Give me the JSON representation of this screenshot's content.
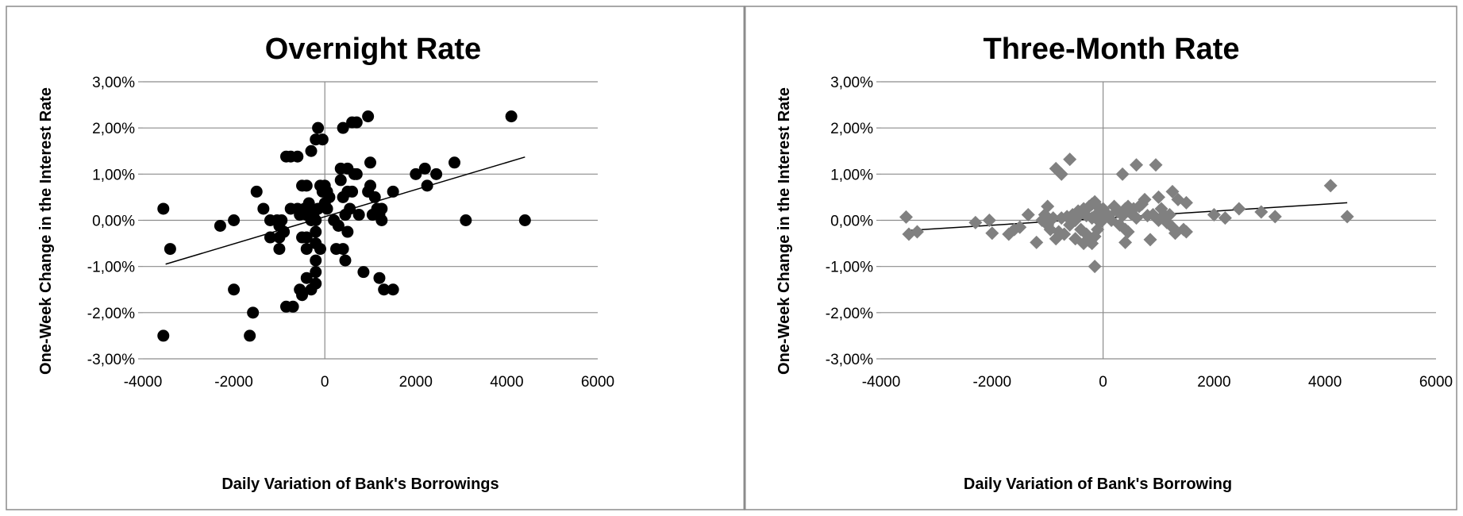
{
  "chart_data": [
    {
      "type": "scatter",
      "title": "Overnight Rate",
      "xlabel": "Daily Variation of Bank's Borrowings",
      "ylabel": "One-Week Change in the Interest Rate",
      "xlim": [
        -4000,
        6000
      ],
      "ylim": [
        -3.0,
        3.0
      ],
      "x_ticks": [
        -4000,
        -2000,
        0,
        2000,
        4000,
        6000
      ],
      "x_tick_labels": [
        "-4000",
        "-2000",
        "0",
        "2000",
        "4000",
        "6000"
      ],
      "y_ticks": [
        3,
        2,
        1,
        0,
        -1,
        -2,
        -3
      ],
      "y_tick_labels": [
        "3,00%",
        "2,00%",
        "1,00%",
        "0,00%",
        "-1,00%",
        "-2,00%",
        "-3,00%"
      ],
      "grid": "horizontal",
      "marker": "circle",
      "marker_color": "#000000",
      "trendline": {
        "x": [
          -3500,
          4400
        ],
        "y": [
          -0.95,
          1.37
        ]
      },
      "series": [
        {
          "points": [
            [
              -3550,
              0.25
            ],
            [
              -3400,
              -0.62
            ],
            [
              -3550,
              -2.5
            ],
            [
              -2300,
              -0.12
            ],
            [
              -2000,
              0.0
            ],
            [
              -2000,
              -1.5
            ],
            [
              -1650,
              -2.5
            ],
            [
              -1580,
              -2.0
            ],
            [
              -1500,
              0.62
            ],
            [
              -1350,
              0.25
            ],
            [
              -1200,
              0.0
            ],
            [
              -1200,
              -0.37
            ],
            [
              -1050,
              0.0
            ],
            [
              -1000,
              -0.12
            ],
            [
              -1000,
              -0.37
            ],
            [
              -1000,
              -0.62
            ],
            [
              -950,
              0.0
            ],
            [
              -900,
              -0.25
            ],
            [
              -850,
              1.38
            ],
            [
              -850,
              -1.87
            ],
            [
              -750,
              1.38
            ],
            [
              -750,
              0.25
            ],
            [
              -700,
              -1.87
            ],
            [
              -600,
              1.38
            ],
            [
              -600,
              0.25
            ],
            [
              -550,
              0.12
            ],
            [
              -550,
              -1.5
            ],
            [
              -500,
              0.75
            ],
            [
              -500,
              -0.37
            ],
            [
              -500,
              -1.62
            ],
            [
              -450,
              0.25
            ],
            [
              -400,
              0.75
            ],
            [
              -400,
              0.12
            ],
            [
              -400,
              -0.37
            ],
            [
              -400,
              -0.62
            ],
            [
              -400,
              -1.25
            ],
            [
              -350,
              0.37
            ],
            [
              -300,
              1.5
            ],
            [
              -300,
              0.25
            ],
            [
              -300,
              0.0
            ],
            [
              -300,
              -1.5
            ],
            [
              -250,
              0.12
            ],
            [
              -200,
              1.75
            ],
            [
              -200,
              0.0
            ],
            [
              -200,
              -0.25
            ],
            [
              -200,
              -0.5
            ],
            [
              -200,
              -0.87
            ],
            [
              -200,
              -1.12
            ],
            [
              -200,
              -1.37
            ],
            [
              -150,
              2.0
            ],
            [
              -150,
              0.25
            ],
            [
              -100,
              0.75
            ],
            [
              -100,
              -0.62
            ],
            [
              -50,
              1.75
            ],
            [
              -50,
              0.62
            ],
            [
              0,
              0.75
            ],
            [
              0,
              0.37
            ],
            [
              50,
              0.62
            ],
            [
              50,
              0.25
            ],
            [
              100,
              0.5
            ],
            [
              200,
              0.0
            ],
            [
              250,
              -0.62
            ],
            [
              300,
              -0.12
            ],
            [
              350,
              1.12
            ],
            [
              350,
              0.87
            ],
            [
              400,
              2.0
            ],
            [
              400,
              0.5
            ],
            [
              400,
              -0.62
            ],
            [
              450,
              0.12
            ],
            [
              450,
              -0.87
            ],
            [
              500,
              1.12
            ],
            [
              500,
              0.62
            ],
            [
              500,
              -0.25
            ],
            [
              550,
              0.25
            ],
            [
              600,
              2.12
            ],
            [
              600,
              0.62
            ],
            [
              650,
              1.0
            ],
            [
              700,
              1.0
            ],
            [
              700,
              2.12
            ],
            [
              750,
              0.12
            ],
            [
              850,
              -1.12
            ],
            [
              950,
              2.25
            ],
            [
              950,
              0.62
            ],
            [
              1000,
              1.25
            ],
            [
              1000,
              0.75
            ],
            [
              1050,
              0.12
            ],
            [
              1100,
              0.5
            ],
            [
              1150,
              0.25
            ],
            [
              1200,
              0.12
            ],
            [
              1200,
              -1.25
            ],
            [
              1250,
              0.0
            ],
            [
              1250,
              0.25
            ],
            [
              1300,
              -1.5
            ],
            [
              1500,
              0.62
            ],
            [
              1500,
              -1.5
            ],
            [
              2000,
              1.0
            ],
            [
              2200,
              1.12
            ],
            [
              2250,
              0.75
            ],
            [
              2450,
              1.0
            ],
            [
              2850,
              1.25
            ],
            [
              3100,
              0.0
            ],
            [
              4100,
              2.25
            ],
            [
              4400,
              0.0
            ]
          ]
        }
      ]
    },
    {
      "type": "scatter",
      "title": "Three-Month Rate",
      "xlabel": "Daily Variation of Bank's Borrowing",
      "ylabel": "One-Week Change in the Interest Rate",
      "xlim": [
        -4000,
        6000
      ],
      "ylim": [
        -3.0,
        3.0
      ],
      "x_ticks": [
        -4000,
        -2000,
        0,
        2000,
        4000,
        6000
      ],
      "x_tick_labels": [
        "-4000",
        "-2000",
        "0",
        "2000",
        "4000",
        "6000"
      ],
      "y_ticks": [
        3,
        2,
        1,
        0,
        -1,
        -2,
        -3
      ],
      "y_tick_labels": [
        "3,00%",
        "2,00%",
        "1,00%",
        "0,00%",
        "-1,00%",
        "-2,00%",
        "-3,00%"
      ],
      "grid": "horizontal",
      "marker": "diamond",
      "marker_color": "#808080",
      "trendline": {
        "x": [
          -3500,
          4400
        ],
        "y": [
          -0.22,
          0.38
        ]
      },
      "series": [
        {
          "points": [
            [
              -3550,
              0.07
            ],
            [
              -3500,
              -0.3
            ],
            [
              -3350,
              -0.25
            ],
            [
              -2300,
              -0.05
            ],
            [
              -2050,
              0.0
            ],
            [
              -2000,
              -0.28
            ],
            [
              -1700,
              -0.3
            ],
            [
              -1600,
              -0.2
            ],
            [
              -1500,
              -0.15
            ],
            [
              -1350,
              0.12
            ],
            [
              -1200,
              -0.48
            ],
            [
              -1100,
              0.0
            ],
            [
              -1050,
              0.12
            ],
            [
              -1000,
              0.3
            ],
            [
              -1000,
              -0.1
            ],
            [
              -950,
              -0.2
            ],
            [
              -900,
              0.05
            ],
            [
              -850,
              1.12
            ],
            [
              -850,
              -0.4
            ],
            [
              -800,
              -0.25
            ],
            [
              -750,
              1.0
            ],
            [
              -750,
              0.05
            ],
            [
              -700,
              -0.3
            ],
            [
              -650,
              0.08
            ],
            [
              -600,
              1.32
            ],
            [
              -600,
              -0.1
            ],
            [
              -550,
              0.12
            ],
            [
              -500,
              0.0
            ],
            [
              -500,
              -0.4
            ],
            [
              -450,
              0.2
            ],
            [
              -400,
              0.15
            ],
            [
              -400,
              -0.2
            ],
            [
              -350,
              -0.5
            ],
            [
              -350,
              0.25
            ],
            [
              -300,
              0.1
            ],
            [
              -300,
              -0.3
            ],
            [
              -250,
              0.3
            ],
            [
              -250,
              -0.45
            ],
            [
              -200,
              0.35
            ],
            [
              -200,
              0.05
            ],
            [
              -200,
              -0.5
            ],
            [
              -150,
              0.4
            ],
            [
              -150,
              -0.35
            ],
            [
              -150,
              -1.0
            ],
            [
              -100,
              0.3
            ],
            [
              -100,
              0.15
            ],
            [
              -100,
              -0.2
            ],
            [
              -50,
              0.2
            ],
            [
              -50,
              -0.05
            ],
            [
              0,
              0.25
            ],
            [
              0,
              0.05
            ],
            [
              50,
              0.15
            ],
            [
              100,
              0.1
            ],
            [
              150,
              0.0
            ],
            [
              200,
              0.3
            ],
            [
              250,
              0.2
            ],
            [
              300,
              -0.1
            ],
            [
              350,
              1.0
            ],
            [
              350,
              0.1
            ],
            [
              400,
              0.25
            ],
            [
              400,
              -0.2
            ],
            [
              400,
              -0.48
            ],
            [
              450,
              0.3
            ],
            [
              450,
              -0.25
            ],
            [
              500,
              0.15
            ],
            [
              550,
              0.25
            ],
            [
              600,
              1.2
            ],
            [
              600,
              0.05
            ],
            [
              650,
              0.3
            ],
            [
              700,
              0.35
            ],
            [
              750,
              0.45
            ],
            [
              800,
              0.1
            ],
            [
              850,
              -0.42
            ],
            [
              900,
              0.12
            ],
            [
              950,
              1.2
            ],
            [
              1000,
              0.5
            ],
            [
              1000,
              0.0
            ],
            [
              1050,
              0.25
            ],
            [
              1100,
              0.12
            ],
            [
              1150,
              -0.05
            ],
            [
              1200,
              0.12
            ],
            [
              1250,
              0.62
            ],
            [
              1250,
              -0.15
            ],
            [
              1300,
              -0.28
            ],
            [
              1350,
              0.45
            ],
            [
              1450,
              -0.2
            ],
            [
              1500,
              0.38
            ],
            [
              1500,
              -0.25
            ],
            [
              2000,
              0.12
            ],
            [
              2200,
              0.05
            ],
            [
              2450,
              0.25
            ],
            [
              2850,
              0.18
            ],
            [
              3100,
              0.08
            ],
            [
              4100,
              0.75
            ],
            [
              4400,
              0.08
            ]
          ]
        }
      ]
    }
  ]
}
